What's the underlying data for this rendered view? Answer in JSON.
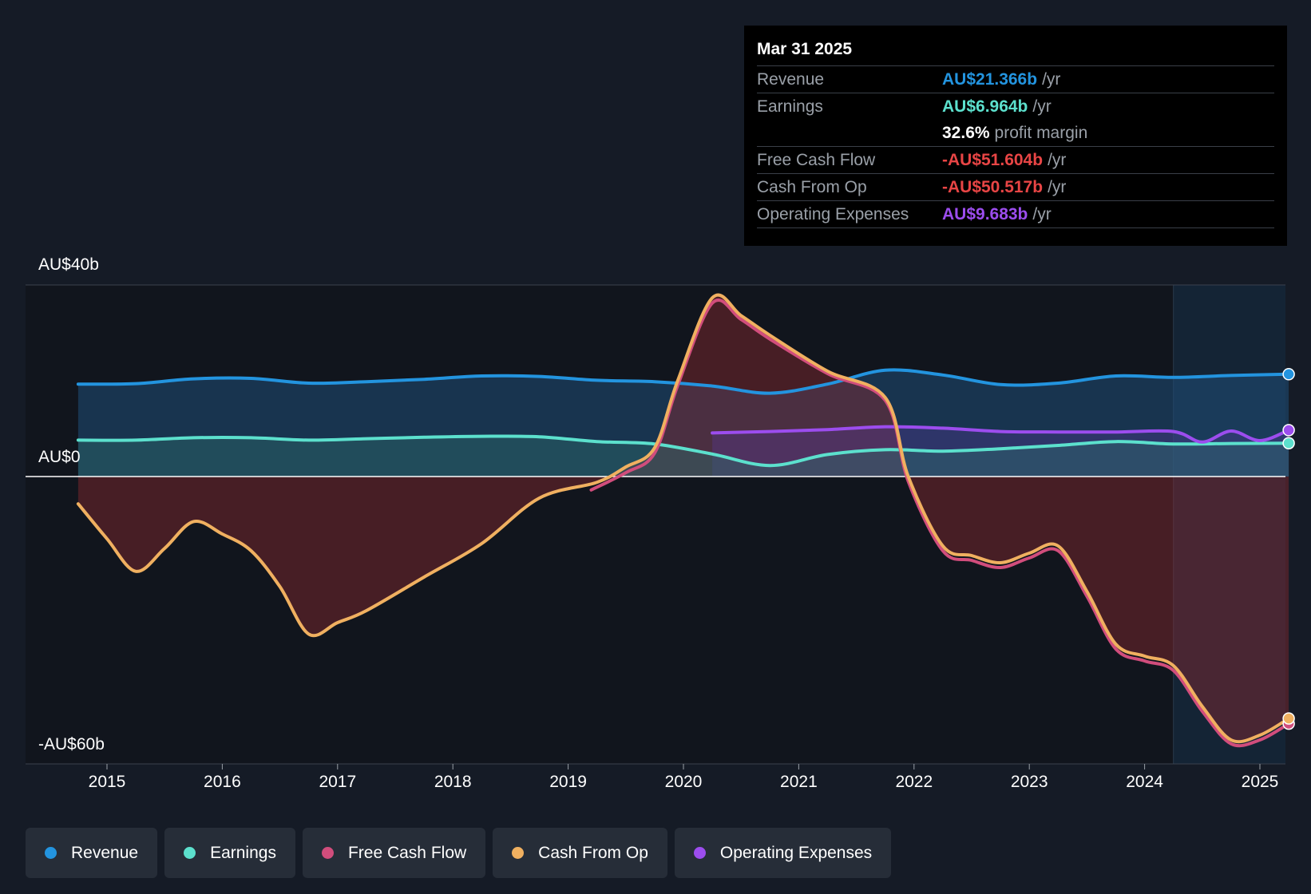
{
  "tooltip": {
    "date": "Mar 31 2025",
    "rows": [
      {
        "label": "Revenue",
        "value": "AU$21.366b",
        "unit": "/yr",
        "color": "#2394df"
      },
      {
        "label": "Earnings",
        "value": "AU$6.964b",
        "unit": "/yr",
        "color": "#5ce0cd"
      },
      {
        "label": "",
        "value": "32.6%",
        "unit": "profit margin",
        "color": "#ffffff"
      },
      {
        "label": "Free Cash Flow",
        "value": "-AU$51.604b",
        "unit": "/yr",
        "color": "#e84545"
      },
      {
        "label": "Cash From Op",
        "value": "-AU$50.517b",
        "unit": "/yr",
        "color": "#e84545"
      },
      {
        "label": "Operating Expenses",
        "value": "AU$9.683b",
        "unit": "/yr",
        "color": "#9c4dee"
      }
    ]
  },
  "legend": [
    {
      "label": "Revenue",
      "color": "#2394df"
    },
    {
      "label": "Earnings",
      "color": "#5ce0cd"
    },
    {
      "label": "Free Cash Flow",
      "color": "#d14d7c"
    },
    {
      "label": "Cash From Op",
      "color": "#f0b060"
    },
    {
      "label": "Operating Expenses",
      "color": "#9c4dee"
    }
  ],
  "chart_data": {
    "type": "line",
    "y_tick_labels": [
      "AU$40b",
      "AU$0",
      "-AU$60b"
    ],
    "y_ticks": [
      40,
      0,
      -60
    ],
    "ylim": [
      -60,
      40
    ],
    "xlim": [
      2014.6,
      2025.25
    ],
    "x_tick_labels": [
      "2015",
      "2016",
      "2017",
      "2018",
      "2019",
      "2020",
      "2021",
      "2022",
      "2023",
      "2024",
      "2025"
    ],
    "x_ticks": [
      2015,
      2016,
      2017,
      2018,
      2019,
      2020,
      2021,
      2022,
      2023,
      2024,
      2025
    ],
    "forecast_start": 2024.25,
    "series": [
      {
        "name": "Revenue",
        "color": "#2394df",
        "points": [
          [
            2014.75,
            19.3
          ],
          [
            2015.25,
            19.4
          ],
          [
            2015.75,
            20.4
          ],
          [
            2016.25,
            20.5
          ],
          [
            2016.75,
            19.5
          ],
          [
            2017.25,
            19.8
          ],
          [
            2017.75,
            20.3
          ],
          [
            2018.25,
            21.0
          ],
          [
            2018.75,
            20.9
          ],
          [
            2019.25,
            20.1
          ],
          [
            2019.75,
            19.8
          ],
          [
            2020.25,
            18.9
          ],
          [
            2020.75,
            17.4
          ],
          [
            2021.25,
            19.3
          ],
          [
            2021.75,
            22.2
          ],
          [
            2022.25,
            21.2
          ],
          [
            2022.75,
            19.2
          ],
          [
            2023.25,
            19.5
          ],
          [
            2023.75,
            21.0
          ],
          [
            2024.25,
            20.7
          ],
          [
            2024.75,
            21.1
          ],
          [
            2025.25,
            21.366
          ]
        ]
      },
      {
        "name": "Earnings",
        "color": "#5ce0cd",
        "points": [
          [
            2014.75,
            7.6
          ],
          [
            2015.25,
            7.6
          ],
          [
            2015.75,
            8.1
          ],
          [
            2016.25,
            8.1
          ],
          [
            2016.75,
            7.6
          ],
          [
            2017.25,
            7.9
          ],
          [
            2017.75,
            8.2
          ],
          [
            2018.25,
            8.4
          ],
          [
            2018.75,
            8.3
          ],
          [
            2019.25,
            7.3
          ],
          [
            2019.75,
            6.8
          ],
          [
            2020.25,
            4.7
          ],
          [
            2020.75,
            2.3
          ],
          [
            2021.25,
            4.6
          ],
          [
            2021.75,
            5.6
          ],
          [
            2022.25,
            5.3
          ],
          [
            2022.75,
            5.8
          ],
          [
            2023.25,
            6.5
          ],
          [
            2023.75,
            7.3
          ],
          [
            2024.25,
            6.8
          ],
          [
            2024.75,
            6.9
          ],
          [
            2025.25,
            6.964
          ]
        ]
      },
      {
        "name": "Free Cash Flow",
        "color": "#d14d7c",
        "points": [
          [
            2019.2,
            -2.8
          ],
          [
            2019.5,
            0.8
          ],
          [
            2019.75,
            4.9
          ],
          [
            2019.95,
            19.0
          ],
          [
            2020.25,
            36.2
          ],
          [
            2020.5,
            32.8
          ],
          [
            2020.75,
            28.7
          ],
          [
            2021.25,
            21.5
          ],
          [
            2021.75,
            15.9
          ],
          [
            2021.95,
            -1.0
          ],
          [
            2022.25,
            -15.5
          ],
          [
            2022.5,
            -17.5
          ],
          [
            2022.75,
            -19.0
          ],
          [
            2023.0,
            -17.0
          ],
          [
            2023.25,
            -15.5
          ],
          [
            2023.5,
            -25.0
          ],
          [
            2023.75,
            -36.0
          ],
          [
            2024.0,
            -38.5
          ],
          [
            2024.25,
            -40.5
          ],
          [
            2024.5,
            -49.0
          ],
          [
            2024.75,
            -55.8
          ],
          [
            2025.0,
            -55.0
          ],
          [
            2025.25,
            -51.604
          ]
        ]
      },
      {
        "name": "Cash From Op",
        "color": "#f0b060",
        "points": [
          [
            2014.75,
            -5.7
          ],
          [
            2015.0,
            -13.0
          ],
          [
            2015.25,
            -19.8
          ],
          [
            2015.5,
            -15.0
          ],
          [
            2015.75,
            -9.4
          ],
          [
            2016.0,
            -12.0
          ],
          [
            2016.25,
            -15.5
          ],
          [
            2016.5,
            -23.0
          ],
          [
            2016.75,
            -32.9
          ],
          [
            2017.0,
            -30.5
          ],
          [
            2017.25,
            -28.0
          ],
          [
            2017.75,
            -21.0
          ],
          [
            2018.25,
            -14.0
          ],
          [
            2018.75,
            -4.5
          ],
          [
            2019.25,
            -1.2
          ],
          [
            2019.5,
            2.0
          ],
          [
            2019.75,
            6.0
          ],
          [
            2019.95,
            20.0
          ],
          [
            2020.25,
            37.3
          ],
          [
            2020.5,
            33.6
          ],
          [
            2020.75,
            29.5
          ],
          [
            2021.25,
            22.0
          ],
          [
            2021.75,
            16.5
          ],
          [
            2021.95,
            0.0
          ],
          [
            2022.25,
            -14.5
          ],
          [
            2022.5,
            -16.5
          ],
          [
            2022.75,
            -18.0
          ],
          [
            2023.0,
            -16.0
          ],
          [
            2023.25,
            -14.5
          ],
          [
            2023.5,
            -24.0
          ],
          [
            2023.75,
            -35.0
          ],
          [
            2024.0,
            -37.5
          ],
          [
            2024.25,
            -39.5
          ],
          [
            2024.5,
            -48.0
          ],
          [
            2024.75,
            -55.0
          ],
          [
            2025.0,
            -54.0
          ],
          [
            2025.25,
            -50.517
          ]
        ]
      },
      {
        "name": "Operating Expenses",
        "color": "#9c4dee",
        "points": [
          [
            2020.25,
            9.1
          ],
          [
            2020.75,
            9.4
          ],
          [
            2021.25,
            9.8
          ],
          [
            2021.75,
            10.4
          ],
          [
            2022.25,
            10.1
          ],
          [
            2022.75,
            9.4
          ],
          [
            2023.25,
            9.3
          ],
          [
            2023.75,
            9.3
          ],
          [
            2024.25,
            9.4
          ],
          [
            2024.5,
            7.2
          ],
          [
            2024.75,
            9.5
          ],
          [
            2025.0,
            7.5
          ],
          [
            2025.25,
            9.683
          ]
        ]
      }
    ]
  }
}
